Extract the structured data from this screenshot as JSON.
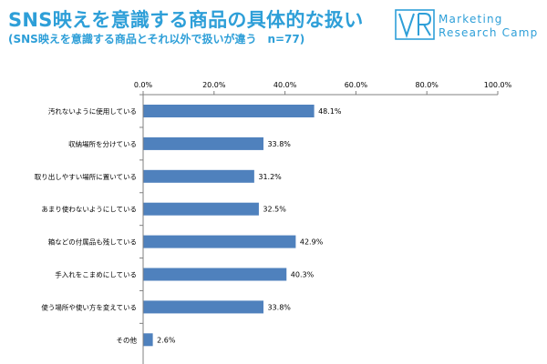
{
  "header": {
    "title": "SNS映えを意識する商品の具体的な扱い",
    "subtitle": "(SNS映えを意識する商品とそれ以外で扱いが違う　n=77)"
  },
  "logo": {
    "line1": "Marketing",
    "line2": "Research Camp",
    "color": "#2e9fd8"
  },
  "chart_data": {
    "type": "bar",
    "orientation": "horizontal",
    "categories": [
      "汚れないように使用している",
      "収納場所を分けている",
      "取り出しやすい場所に置いている",
      "あまり使わないようにしている",
      "箱などの付属品も残している",
      "手入れをこまめにしている",
      "使う場所や使い方を変えている",
      "その他"
    ],
    "values": [
      48.1,
      33.8,
      31.2,
      32.5,
      42.9,
      40.3,
      33.8,
      2.6
    ],
    "value_labels": [
      "48.1%",
      "33.8%",
      "31.2%",
      "32.5%",
      "42.9%",
      "40.3%",
      "33.8%",
      "2.6%"
    ],
    "xlim": [
      0,
      100
    ],
    "x_ticks": [
      0,
      20,
      40,
      60,
      80,
      100
    ],
    "x_tick_labels": [
      "0.0%",
      "20.0%",
      "40.0%",
      "60.0%",
      "80.0%",
      "100.0%"
    ],
    "tick_position": "top",
    "grid": false,
    "bar_color": "#4f81bd"
  }
}
